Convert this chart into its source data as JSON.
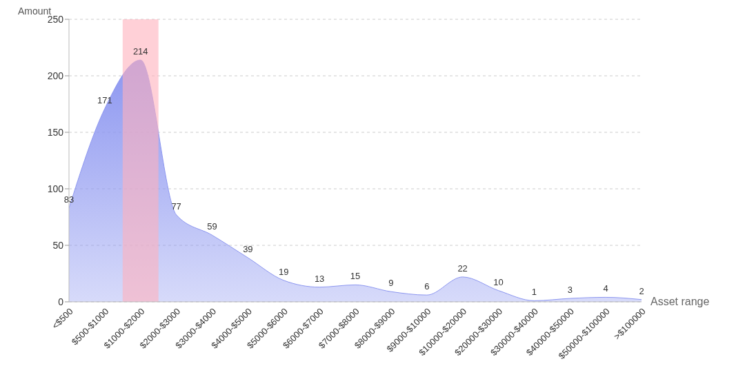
{
  "chart_data": {
    "type": "area",
    "xlabel": "Asset range",
    "ylabel": "Amount",
    "categories": [
      "<$500",
      "$500-$1000",
      "$1000-$2000",
      "$2000-$3000",
      "$3000-$4000",
      "$4000-$5000",
      "$5000-$6000",
      "$6000-$7000",
      "$7000-$8000",
      "$8000-$9000",
      "$9000-$10000",
      "$10000-$20000",
      "$20000-$30000",
      "$30000-$40000",
      "$40000-$50000",
      "$50000-$100000",
      ">$100000"
    ],
    "series": [
      {
        "color": "#8c96f0",
        "values": [
          83,
          171,
          214,
          77,
          59,
          39,
          19,
          13,
          15,
          9,
          6,
          22,
          10,
          1,
          3,
          4,
          2
        ]
      }
    ],
    "ylim": [
      0,
      250
    ],
    "yticks": [
      0,
      50,
      100,
      150,
      200,
      250
    ],
    "grid": "y",
    "data_labels": true,
    "legend": false,
    "bands": [
      {
        "axis": "x",
        "from": "$1000-$2000",
        "to": "$1000-$2000",
        "color": "#ffb0bc"
      }
    ]
  }
}
